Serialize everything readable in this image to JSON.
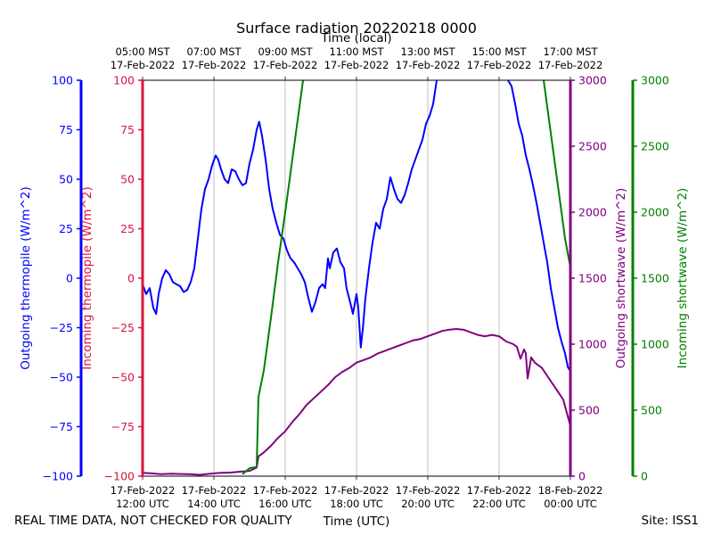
{
  "chart_data": {
    "type": "line",
    "title": "Surface radiation 20220218 0000",
    "top_axis_title": "Time (local)",
    "x_title": "Time (UTC)",
    "footer_left": "REAL TIME DATA, NOT CHECKED FOR QUALITY",
    "footer_right": "Site: ISS1",
    "xlim": [
      0,
      12
    ],
    "x_unit": "hours after 17-Feb-2022 12:00 UTC",
    "bottom_ticks": [
      {
        "date": "17-Feb-2022",
        "time": "12:00 UTC"
      },
      {
        "date": "17-Feb-2022",
        "time": "14:00 UTC"
      },
      {
        "date": "17-Feb-2022",
        "time": "16:00 UTC"
      },
      {
        "date": "17-Feb-2022",
        "time": "18:00 UTC"
      },
      {
        "date": "17-Feb-2022",
        "time": "20:00 UTC"
      },
      {
        "date": "17-Feb-2022",
        "time": "22:00 UTC"
      },
      {
        "date": "18-Feb-2022",
        "time": "00:00 UTC"
      }
    ],
    "top_ticks": [
      {
        "time": "05:00 MST",
        "date": "17-Feb-2022"
      },
      {
        "time": "07:00 MST",
        "date": "17-Feb-2022"
      },
      {
        "time": "09:00 MST",
        "date": "17-Feb-2022"
      },
      {
        "time": "11:00 MST",
        "date": "17-Feb-2022"
      },
      {
        "time": "13:00 MST",
        "date": "17-Feb-2022"
      },
      {
        "time": "15:00 MST",
        "date": "17-Feb-2022"
      },
      {
        "time": "17:00 MST",
        "date": "17-Feb-2022"
      }
    ],
    "grid": "vertical",
    "axes": {
      "outgoing_thermopile": {
        "label": "Outgoing thermopile (W/m^2)",
        "color": "#0000ff",
        "ylim": [
          -100,
          100
        ],
        "ticks": [
          "−100",
          "−75",
          "−50",
          "−25",
          "0",
          "25",
          "50",
          "75",
          "100"
        ]
      },
      "incoming_thermopile": {
        "label": "Incoming thermopile (W/m^2)",
        "color": "#dc143c",
        "ylim": [
          -100,
          100
        ],
        "ticks": [
          "−100",
          "−75",
          "−50",
          "−25",
          "0",
          "25",
          "50",
          "75",
          "100"
        ]
      },
      "outgoing_shortwave": {
        "label": "Outgoing shortwave (W/m^2)",
        "color": "#800080",
        "ylim": [
          0,
          3000
        ],
        "ticks": [
          "0",
          "500",
          "1000",
          "1500",
          "2000",
          "2500",
          "3000"
        ]
      },
      "incoming_shortwave": {
        "label": "Incoming shortwave (W/m^2)",
        "color": "#008000",
        "ylim": [
          0,
          3000
        ],
        "ticks": [
          "0",
          "500",
          "1000",
          "1500",
          "2000",
          "2500",
          "3000"
        ]
      }
    },
    "series": [
      {
        "axis": "outgoing_thermopile",
        "color": "#0000ff",
        "points": [
          [
            0,
            -3
          ],
          [
            0.1,
            -8
          ],
          [
            0.2,
            -5
          ],
          [
            0.3,
            -15
          ],
          [
            0.38,
            -18
          ],
          [
            0.45,
            -8
          ],
          [
            0.55,
            0
          ],
          [
            0.65,
            4
          ],
          [
            0.75,
            2
          ],
          [
            0.85,
            -2
          ],
          [
            0.95,
            -3
          ],
          [
            1.05,
            -4
          ],
          [
            1.15,
            -7
          ],
          [
            1.25,
            -6
          ],
          [
            1.35,
            -2
          ],
          [
            1.45,
            5
          ],
          [
            1.55,
            20
          ],
          [
            1.65,
            35
          ],
          [
            1.75,
            45
          ],
          [
            1.85,
            50
          ],
          [
            1.95,
            57
          ],
          [
            2.05,
            62
          ],
          [
            2.12,
            60
          ],
          [
            2.2,
            55
          ],
          [
            2.3,
            50
          ],
          [
            2.4,
            48
          ],
          [
            2.5,
            55
          ],
          [
            2.6,
            54
          ],
          [
            2.7,
            50
          ],
          [
            2.8,
            47
          ],
          [
            2.9,
            48
          ],
          [
            3.0,
            58
          ],
          [
            3.1,
            65
          ],
          [
            3.2,
            75
          ],
          [
            3.27,
            79
          ],
          [
            3.35,
            72
          ],
          [
            3.45,
            60
          ],
          [
            3.55,
            45
          ],
          [
            3.65,
            35
          ],
          [
            3.75,
            28
          ],
          [
            3.85,
            22
          ],
          [
            3.95,
            20
          ],
          [
            4.05,
            14
          ],
          [
            4.15,
            10
          ],
          [
            4.25,
            8
          ],
          [
            4.35,
            5
          ],
          [
            4.45,
            2
          ],
          [
            4.55,
            -2
          ],
          [
            4.65,
            -10
          ],
          [
            4.75,
            -17
          ],
          [
            4.85,
            -12
          ],
          [
            4.95,
            -5
          ],
          [
            5.05,
            -3
          ],
          [
            5.12,
            -5
          ],
          [
            5.2,
            10
          ],
          [
            5.25,
            5
          ],
          [
            5.35,
            13
          ],
          [
            5.45,
            15
          ],
          [
            5.55,
            8
          ],
          [
            5.65,
            5
          ],
          [
            5.72,
            -5
          ],
          [
            5.82,
            -12
          ],
          [
            5.9,
            -18
          ],
          [
            6.0,
            -8
          ],
          [
            6.05,
            -15
          ],
          [
            6.12,
            -35
          ],
          [
            6.18,
            -25
          ],
          [
            6.25,
            -10
          ],
          [
            6.35,
            5
          ],
          [
            6.45,
            18
          ],
          [
            6.55,
            28
          ],
          [
            6.65,
            25
          ],
          [
            6.75,
            35
          ],
          [
            6.85,
            40
          ],
          [
            6.95,
            51
          ],
          [
            7.05,
            45
          ],
          [
            7.15,
            40
          ],
          [
            7.25,
            38
          ],
          [
            7.35,
            42
          ],
          [
            7.45,
            48
          ],
          [
            7.55,
            55
          ],
          [
            7.65,
            60
          ],
          [
            7.75,
            65
          ],
          [
            7.85,
            70
          ],
          [
            7.95,
            78
          ],
          [
            8.05,
            82
          ],
          [
            8.15,
            88
          ],
          [
            8.25,
            100
          ]
        ]
      },
      {
        "axis": "outgoing_thermopile",
        "color": "#0000ff",
        "points": [
          [
            10.25,
            100
          ],
          [
            10.35,
            97
          ],
          [
            10.45,
            88
          ],
          [
            10.55,
            78
          ],
          [
            10.65,
            72
          ],
          [
            10.75,
            62
          ],
          [
            10.85,
            55
          ],
          [
            10.95,
            47
          ],
          [
            11.05,
            38
          ],
          [
            11.15,
            28
          ],
          [
            11.25,
            18
          ],
          [
            11.35,
            8
          ],
          [
            11.45,
            -5
          ],
          [
            11.55,
            -15
          ],
          [
            11.65,
            -25
          ],
          [
            11.75,
            -32
          ],
          [
            11.85,
            -38
          ],
          [
            11.93,
            -45
          ],
          [
            12.0,
            -47
          ]
        ]
      },
      {
        "axis": "outgoing_shortwave",
        "color": "#800080",
        "points": [
          [
            0,
            25
          ],
          [
            0.3,
            20
          ],
          [
            0.5,
            15
          ],
          [
            0.8,
            18
          ],
          [
            1.0,
            17
          ],
          [
            1.3,
            15
          ],
          [
            1.6,
            10
          ],
          [
            1.9,
            18
          ],
          [
            2.2,
            25
          ],
          [
            2.5,
            28
          ],
          [
            2.8,
            35
          ],
          [
            3.0,
            40
          ],
          [
            3.2,
            65
          ],
          [
            3.25,
            150
          ],
          [
            3.4,
            180
          ],
          [
            3.6,
            230
          ],
          [
            3.8,
            290
          ],
          [
            4.0,
            340
          ],
          [
            4.2,
            410
          ],
          [
            4.4,
            470
          ],
          [
            4.6,
            540
          ],
          [
            4.8,
            590
          ],
          [
            5.0,
            640
          ],
          [
            5.2,
            690
          ],
          [
            5.4,
            750
          ],
          [
            5.6,
            790
          ],
          [
            5.8,
            820
          ],
          [
            6.0,
            860
          ],
          [
            6.2,
            880
          ],
          [
            6.4,
            900
          ],
          [
            6.6,
            930
          ],
          [
            6.8,
            950
          ],
          [
            7.0,
            970
          ],
          [
            7.2,
            990
          ],
          [
            7.4,
            1010
          ],
          [
            7.6,
            1030
          ],
          [
            7.8,
            1040
          ],
          [
            8.0,
            1060
          ],
          [
            8.2,
            1080
          ],
          [
            8.4,
            1100
          ],
          [
            8.6,
            1110
          ],
          [
            8.8,
            1115
          ],
          [
            9.0,
            1110
          ],
          [
            9.2,
            1090
          ],
          [
            9.4,
            1070
          ],
          [
            9.6,
            1060
          ],
          [
            9.8,
            1070
          ],
          [
            10.0,
            1060
          ],
          [
            10.2,
            1020
          ],
          [
            10.4,
            1000
          ],
          [
            10.5,
            980
          ],
          [
            10.6,
            890
          ],
          [
            10.7,
            960
          ],
          [
            10.75,
            930
          ],
          [
            10.8,
            740
          ],
          [
            10.9,
            900
          ],
          [
            11.0,
            860
          ],
          [
            11.2,
            820
          ],
          [
            11.4,
            740
          ],
          [
            11.6,
            660
          ],
          [
            11.8,
            580
          ],
          [
            12.0,
            380
          ]
        ]
      },
      {
        "axis": "incoming_shortwave",
        "color": "#008000",
        "points": [
          [
            2.8,
            15
          ],
          [
            3.0,
            60
          ],
          [
            3.2,
            70
          ],
          [
            3.25,
            600
          ],
          [
            3.4,
            800
          ],
          [
            3.6,
            1200
          ],
          [
            3.8,
            1620
          ],
          [
            4.0,
            2000
          ],
          [
            4.2,
            2400
          ],
          [
            4.4,
            2800
          ],
          [
            4.5,
            3000
          ]
        ]
      },
      {
        "axis": "incoming_shortwave",
        "color": "#008000",
        "points": [
          [
            11.25,
            3000
          ],
          [
            11.35,
            2800
          ],
          [
            11.45,
            2600
          ],
          [
            11.55,
            2400
          ],
          [
            11.65,
            2200
          ],
          [
            11.75,
            2000
          ],
          [
            11.85,
            1800
          ],
          [
            12.0,
            1580
          ]
        ]
      }
    ]
  }
}
